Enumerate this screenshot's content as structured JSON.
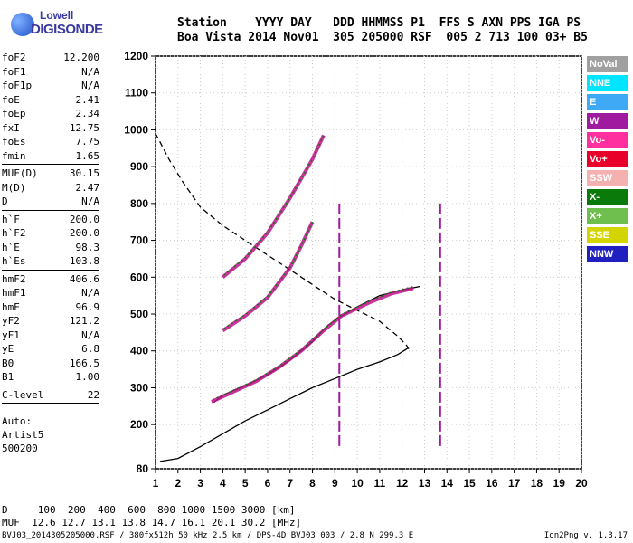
{
  "logo": {
    "line1": "Lowell",
    "line2": "DIGISONDE"
  },
  "header": {
    "line1": "Station    YYYY DAY   DDD HHMMSS P1  FFS S AXN PPS IGA PS",
    "line2": "Boa Vista 2014 Nov01  305 205000 RSF  005 2 713 100 03+ B5"
  },
  "params_groups": [
    [
      {
        "name": "foF2",
        "value": "12.200"
      },
      {
        "name": "foF1",
        "value": "N/A"
      },
      {
        "name": "foF1p",
        "value": "N/A"
      },
      {
        "name": "foE",
        "value": "2.41"
      },
      {
        "name": "foEp",
        "value": "2.34"
      },
      {
        "name": "fxI",
        "value": "12.75"
      },
      {
        "name": "foEs",
        "value": "7.75"
      },
      {
        "name": "fmin",
        "value": "1.65"
      }
    ],
    [
      {
        "name": "MUF(D)",
        "value": "30.15"
      },
      {
        "name": "M(D)",
        "value": "2.47"
      },
      {
        "name": "D",
        "value": "N/A"
      }
    ],
    [
      {
        "name": "h`F",
        "value": "200.0"
      },
      {
        "name": "h`F2",
        "value": "200.0"
      },
      {
        "name": "h`E",
        "value": "98.3"
      },
      {
        "name": "h`Es",
        "value": "103.8"
      }
    ],
    [
      {
        "name": "hmF2",
        "value": "406.6"
      },
      {
        "name": "hmF1",
        "value": "N/A"
      },
      {
        "name": "hmE",
        "value": "96.9"
      },
      {
        "name": "yF2",
        "value": "121.2"
      },
      {
        "name": "yF1",
        "value": "N/A"
      },
      {
        "name": "yE",
        "value": "6.8"
      },
      {
        "name": "B0",
        "value": "166.5"
      },
      {
        "name": "B1",
        "value": "1.00"
      }
    ],
    [
      {
        "name": "C-level",
        "value": "22"
      }
    ]
  ],
  "autoscaling": {
    "line1": "Auto:",
    "line2": "Artist5",
    "line3": "500200"
  },
  "legend": [
    {
      "label": "NoVal",
      "color": "#a0a0a0"
    },
    {
      "label": "NNE",
      "color": "#00e5ff"
    },
    {
      "label": "E",
      "color": "#3fa9f5"
    },
    {
      "label": "W",
      "color": "#a01aa0"
    },
    {
      "label": "Vo-",
      "color": "#ff2fa0"
    },
    {
      "label": "Vo+",
      "color": "#e8002a"
    },
    {
      "label": "SSW",
      "color": "#f5b0b0"
    },
    {
      "label": "X-",
      "color": "#0a7a0a"
    },
    {
      "label": "X+",
      "color": "#6fbf4f"
    },
    {
      "label": "SSE",
      "color": "#d4d400"
    },
    {
      "label": "NNW",
      "color": "#2020c0"
    }
  ],
  "chart_data": {
    "type": "scatter",
    "title": "",
    "xlabel": "",
    "ylabel": "",
    "xlim": [
      1,
      20
    ],
    "ylim": [
      80,
      1200
    ],
    "x_ticks": [
      1,
      2,
      3,
      4,
      5,
      6,
      7,
      8,
      9,
      10,
      11,
      12,
      13,
      14,
      15,
      16,
      17,
      18,
      19,
      20
    ],
    "y_ticks": [
      80,
      200,
      300,
      400,
      500,
      600,
      700,
      800,
      900,
      1000,
      1100,
      1200
    ],
    "grid": true,
    "series": [
      {
        "style": "solid",
        "points": [
          [
            3.6,
            260
          ],
          [
            4,
            280
          ],
          [
            5,
            305
          ],
          [
            6,
            335
          ],
          [
            7,
            375
          ],
          [
            8,
            425
          ],
          [
            8.7,
            470
          ],
          [
            9.3,
            495
          ],
          [
            10,
            520
          ],
          [
            11,
            550
          ],
          [
            12,
            565
          ],
          [
            12.8,
            575
          ]
        ]
      },
      {
        "style": "solid",
        "points": [
          [
            1.2,
            100
          ],
          [
            2,
            108
          ],
          [
            3,
            140
          ],
          [
            4,
            175
          ],
          [
            5,
            210
          ],
          [
            6,
            240
          ],
          [
            7,
            270
          ],
          [
            8,
            300
          ],
          [
            9,
            325
          ],
          [
            10,
            350
          ],
          [
            11,
            370
          ],
          [
            11.8,
            390
          ],
          [
            12.2,
            405
          ],
          [
            12.3,
            410
          ]
        ]
      },
      {
        "style": "dashed",
        "points": [
          [
            1,
            990
          ],
          [
            1.6,
            920
          ],
          [
            2.2,
            860
          ],
          [
            3,
            790
          ],
          [
            4,
            740
          ],
          [
            5,
            700
          ],
          [
            6,
            660
          ],
          [
            7,
            620
          ],
          [
            8,
            580
          ],
          [
            9,
            540
          ],
          [
            10,
            510
          ],
          [
            11,
            480
          ],
          [
            11.8,
            440
          ],
          [
            12.2,
            415
          ],
          [
            12.3,
            405
          ]
        ]
      },
      {
        "style": "trace",
        "points": [
          [
            3.5,
            262
          ],
          [
            4.5,
            290
          ],
          [
            5.5,
            318
          ],
          [
            6.5,
            355
          ],
          [
            7.5,
            400
          ],
          [
            8.5,
            455
          ],
          [
            9.3,
            495
          ],
          [
            10.5,
            530
          ],
          [
            11.5,
            555
          ],
          [
            12.5,
            570
          ]
        ]
      },
      {
        "style": "trace",
        "points": [
          [
            4,
            455
          ],
          [
            5,
            495
          ],
          [
            6,
            545
          ],
          [
            7,
            625
          ],
          [
            7.5,
            685
          ],
          [
            8,
            750
          ]
        ]
      },
      {
        "style": "trace",
        "points": [
          [
            4,
            600
          ],
          [
            5,
            650
          ],
          [
            6,
            720
          ],
          [
            7,
            815
          ],
          [
            8,
            920
          ],
          [
            8.5,
            985
          ]
        ]
      }
    ],
    "vertical_markers": [
      9.2,
      13.7
    ]
  },
  "footer": {
    "d_row": "D     100  200  400  600  800 1000 1500 3000 [km]",
    "muf_row": "MUF  12.6 12.7 13.1 13.8 14.7 16.1 20.1 30.2 [MHz]",
    "file_line": "BVJ03_2014305205000.RSF / 380fx512h 50 kHz 2.5 km / DPS-4D BVJ03 003 / 2.8 N 299.3 E",
    "version": "Ion2Png v. 1.3.17"
  }
}
